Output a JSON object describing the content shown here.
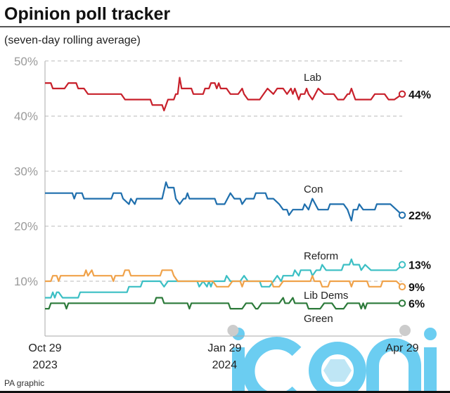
{
  "header": {
    "title": "Opinion poll tracker",
    "subtitle": "(seven-day rolling average)"
  },
  "footer": {
    "credit": "PA graphic"
  },
  "watermark": {
    "text": "iconic",
    "color": "#5cc8f0"
  },
  "chart_data": {
    "type": "line",
    "title": "Opinion poll tracker",
    "subtitle": "(seven-day rolling average)",
    "ylim": [
      0,
      50
    ],
    "yticks": [
      {
        "value": 50,
        "label": "50%"
      },
      {
        "value": 40,
        "label": "40%"
      },
      {
        "value": 30,
        "label": "30%"
      },
      {
        "value": 20,
        "label": "20%"
      },
      {
        "value": 10,
        "label": "10%"
      }
    ],
    "xlim": [
      "2023-10-29",
      "2024-04-29"
    ],
    "xticks": [
      {
        "date": "2023-10-29",
        "line1": "Oct 29",
        "line2": "2023"
      },
      {
        "date": "2024-01-29",
        "line1": "Jan 29",
        "line2": "2024"
      },
      {
        "date": "2024-04-29",
        "line1": "Apr 29",
        "line2": ""
      }
    ],
    "grid": "horizontal dashed",
    "series": [
      {
        "name": "Lab",
        "color": "#c8202b",
        "end_label": "44%",
        "points": [
          [
            "2023-10-29",
            46
          ],
          [
            "2023-11-01",
            46
          ],
          [
            "2023-11-02",
            45
          ],
          [
            "2023-11-08",
            45
          ],
          [
            "2023-11-10",
            46
          ],
          [
            "2023-11-14",
            46
          ],
          [
            "2023-11-15",
            45
          ],
          [
            "2023-11-18",
            45
          ],
          [
            "2023-11-20",
            44
          ],
          [
            "2023-12-07",
            44
          ],
          [
            "2023-12-09",
            43
          ],
          [
            "2023-12-22",
            43
          ],
          [
            "2023-12-23",
            42
          ],
          [
            "2023-12-28",
            42
          ],
          [
            "2023-12-29",
            41
          ],
          [
            "2023-12-31",
            43
          ],
          [
            "2024-01-03",
            43
          ],
          [
            "2024-01-04",
            44
          ],
          [
            "2024-01-05",
            44
          ],
          [
            "2024-01-06",
            47
          ],
          [
            "2024-01-07",
            45
          ],
          [
            "2024-01-12",
            45
          ],
          [
            "2024-01-13",
            44
          ],
          [
            "2024-01-18",
            44
          ],
          [
            "2024-01-19",
            45
          ],
          [
            "2024-01-21",
            45
          ],
          [
            "2024-01-22",
            46
          ],
          [
            "2024-01-24",
            46
          ],
          [
            "2024-01-25",
            45
          ],
          [
            "2024-01-26",
            46
          ],
          [
            "2024-01-27",
            45
          ],
          [
            "2024-01-30",
            45
          ],
          [
            "2024-02-01",
            44
          ],
          [
            "2024-02-05",
            44
          ],
          [
            "2024-02-07",
            45
          ],
          [
            "2024-02-08",
            44
          ],
          [
            "2024-02-10",
            43
          ],
          [
            "2024-02-16",
            43
          ],
          [
            "2024-02-18",
            44
          ],
          [
            "2024-02-20",
            45
          ],
          [
            "2024-02-23",
            44
          ],
          [
            "2024-02-25",
            45
          ],
          [
            "2024-02-28",
            45
          ],
          [
            "2024-03-01",
            44
          ],
          [
            "2024-03-03",
            45
          ],
          [
            "2024-03-04",
            44
          ],
          [
            "2024-03-05",
            45
          ],
          [
            "2024-03-07",
            43
          ],
          [
            "2024-03-08",
            44
          ],
          [
            "2024-03-10",
            44
          ],
          [
            "2024-03-11",
            45
          ],
          [
            "2024-03-12",
            44
          ],
          [
            "2024-03-14",
            43
          ],
          [
            "2024-03-17",
            45
          ],
          [
            "2024-03-20",
            44
          ],
          [
            "2024-03-25",
            44
          ],
          [
            "2024-03-27",
            43
          ],
          [
            "2024-03-30",
            43
          ],
          [
            "2024-04-01",
            44
          ],
          [
            "2024-04-02",
            44
          ],
          [
            "2024-04-03",
            45
          ],
          [
            "2024-04-05",
            43
          ],
          [
            "2024-04-13",
            43
          ],
          [
            "2024-04-15",
            44
          ],
          [
            "2024-04-20",
            44
          ],
          [
            "2024-04-22",
            43
          ],
          [
            "2024-04-25",
            43
          ],
          [
            "2024-04-29",
            44
          ]
        ]
      },
      {
        "name": "Con",
        "color": "#1f6fad",
        "end_label": "22%",
        "points": [
          [
            "2023-10-29",
            26
          ],
          [
            "2023-11-12",
            26
          ],
          [
            "2023-11-13",
            25
          ],
          [
            "2023-11-14",
            26
          ],
          [
            "2023-11-17",
            26
          ],
          [
            "2023-11-18",
            25
          ],
          [
            "2023-12-02",
            25
          ],
          [
            "2023-12-03",
            26
          ],
          [
            "2023-12-07",
            26
          ],
          [
            "2023-12-08",
            25
          ],
          [
            "2023-12-11",
            24
          ],
          [
            "2023-12-12",
            25
          ],
          [
            "2023-12-14",
            24
          ],
          [
            "2023-12-15",
            25
          ],
          [
            "2023-12-28",
            25
          ],
          [
            "2023-12-30",
            28
          ],
          [
            "2023-12-31",
            27
          ],
          [
            "2024-01-03",
            27
          ],
          [
            "2024-01-04",
            25
          ],
          [
            "2024-01-06",
            24
          ],
          [
            "2024-01-08",
            25
          ],
          [
            "2024-01-09",
            25
          ],
          [
            "2024-01-10",
            26
          ],
          [
            "2024-01-11",
            25
          ],
          [
            "2024-01-24",
            25
          ],
          [
            "2024-01-25",
            24
          ],
          [
            "2024-01-29",
            24
          ],
          [
            "2024-02-01",
            26
          ],
          [
            "2024-02-03",
            25
          ],
          [
            "2024-02-06",
            25
          ],
          [
            "2024-02-07",
            24
          ],
          [
            "2024-02-09",
            25
          ],
          [
            "2024-02-13",
            25
          ],
          [
            "2024-02-14",
            26
          ],
          [
            "2024-02-19",
            26
          ],
          [
            "2024-02-20",
            25
          ],
          [
            "2024-02-23",
            25
          ],
          [
            "2024-02-26",
            24
          ],
          [
            "2024-02-28",
            23
          ],
          [
            "2024-03-01",
            23
          ],
          [
            "2024-03-02",
            22
          ],
          [
            "2024-03-04",
            23
          ],
          [
            "2024-03-09",
            23
          ],
          [
            "2024-03-10",
            24
          ],
          [
            "2024-03-12",
            23
          ],
          [
            "2024-03-14",
            25
          ],
          [
            "2024-03-17",
            23
          ],
          [
            "2024-03-22",
            23
          ],
          [
            "2024-03-23",
            24
          ],
          [
            "2024-03-30",
            24
          ],
          [
            "2024-04-01",
            23
          ],
          [
            "2024-04-03",
            21
          ],
          [
            "2024-04-04",
            23
          ],
          [
            "2024-04-06",
            23
          ],
          [
            "2024-04-07",
            24
          ],
          [
            "2024-04-09",
            23
          ],
          [
            "2024-04-15",
            23
          ],
          [
            "2024-04-16",
            24
          ],
          [
            "2024-04-23",
            24
          ],
          [
            "2024-04-26",
            23
          ],
          [
            "2024-04-29",
            22
          ]
        ]
      },
      {
        "name": "Reform",
        "color": "#3bbfc4",
        "end_label": "13%",
        "points": [
          [
            "2023-10-29",
            7
          ],
          [
            "2023-11-01",
            7
          ],
          [
            "2023-11-02",
            8
          ],
          [
            "2023-11-03",
            7
          ],
          [
            "2023-11-04",
            8
          ],
          [
            "2023-11-05",
            8
          ],
          [
            "2023-11-07",
            7
          ],
          [
            "2023-11-15",
            7
          ],
          [
            "2023-11-16",
            8
          ],
          [
            "2023-12-10",
            8
          ],
          [
            "2023-12-11",
            9
          ],
          [
            "2023-12-17",
            9
          ],
          [
            "2023-12-18",
            10
          ],
          [
            "2023-12-27",
            10
          ],
          [
            "2023-12-29",
            9
          ],
          [
            "2023-12-31",
            10
          ],
          [
            "2024-01-15",
            10
          ],
          [
            "2024-01-16",
            9
          ],
          [
            "2024-01-18",
            10
          ],
          [
            "2024-01-20",
            9
          ],
          [
            "2024-01-21",
            10
          ],
          [
            "2024-01-22",
            9
          ],
          [
            "2024-01-23",
            10
          ],
          [
            "2024-01-29",
            10
          ],
          [
            "2024-01-30",
            11
          ],
          [
            "2024-02-01",
            10
          ],
          [
            "2024-02-06",
            10
          ],
          [
            "2024-02-08",
            11
          ],
          [
            "2024-02-10",
            10
          ],
          [
            "2024-02-16",
            10
          ],
          [
            "2024-02-17",
            9
          ],
          [
            "2024-02-21",
            9
          ],
          [
            "2024-02-23",
            10
          ],
          [
            "2024-02-25",
            11
          ],
          [
            "2024-02-27",
            10
          ],
          [
            "2024-02-28",
            11
          ],
          [
            "2024-03-04",
            11
          ],
          [
            "2024-03-05",
            12
          ],
          [
            "2024-03-07",
            11
          ],
          [
            "2024-03-08",
            12
          ],
          [
            "2024-03-13",
            12
          ],
          [
            "2024-03-14",
            11
          ],
          [
            "2024-03-16",
            12
          ],
          [
            "2024-03-18",
            12
          ],
          [
            "2024-03-19",
            13
          ],
          [
            "2024-03-21",
            12
          ],
          [
            "2024-03-29",
            12
          ],
          [
            "2024-03-30",
            13
          ],
          [
            "2024-04-02",
            13
          ],
          [
            "2024-04-03",
            14
          ],
          [
            "2024-04-04",
            13
          ],
          [
            "2024-04-07",
            13
          ],
          [
            "2024-04-08",
            12
          ],
          [
            "2024-04-10",
            13
          ],
          [
            "2024-04-13",
            12
          ],
          [
            "2024-04-26",
            12
          ],
          [
            "2024-04-29",
            13
          ]
        ]
      },
      {
        "name": "Lib Dems",
        "color": "#f0a24a",
        "end_label": "9%",
        "points": [
          [
            "2023-10-29",
            10
          ],
          [
            "2023-11-01",
            10
          ],
          [
            "2023-11-02",
            11
          ],
          [
            "2023-11-04",
            11
          ],
          [
            "2023-11-05",
            10
          ],
          [
            "2023-11-06",
            11
          ],
          [
            "2023-11-18",
            11
          ],
          [
            "2023-11-19",
            12
          ],
          [
            "2023-11-20",
            11
          ],
          [
            "2023-11-22",
            12
          ],
          [
            "2023-11-23",
            11
          ],
          [
            "2023-12-02",
            11
          ],
          [
            "2023-12-03",
            10
          ],
          [
            "2023-12-04",
            11
          ],
          [
            "2023-12-08",
            11
          ],
          [
            "2023-12-09",
            12
          ],
          [
            "2023-12-11",
            12
          ],
          [
            "2023-12-12",
            11
          ],
          [
            "2023-12-27",
            11
          ],
          [
            "2023-12-28",
            12
          ],
          [
            "2024-01-02",
            12
          ],
          [
            "2024-01-03",
            11
          ],
          [
            "2024-01-05",
            10
          ],
          [
            "2024-01-23",
            10
          ],
          [
            "2024-01-25",
            9
          ],
          [
            "2024-01-31",
            9
          ],
          [
            "2024-02-02",
            10
          ],
          [
            "2024-02-06",
            10
          ],
          [
            "2024-02-07",
            9
          ],
          [
            "2024-02-08",
            10
          ],
          [
            "2024-02-22",
            10
          ],
          [
            "2024-02-23",
            9
          ],
          [
            "2024-02-26",
            9
          ],
          [
            "2024-02-28",
            10
          ],
          [
            "2024-03-13",
            10
          ],
          [
            "2024-03-14",
            11
          ],
          [
            "2024-03-15",
            10
          ],
          [
            "2024-03-18",
            10
          ],
          [
            "2024-03-19",
            9
          ],
          [
            "2024-03-22",
            9
          ],
          [
            "2024-03-23",
            10
          ],
          [
            "2024-04-02",
            10
          ],
          [
            "2024-04-03",
            9
          ],
          [
            "2024-04-04",
            10
          ],
          [
            "2024-04-11",
            10
          ],
          [
            "2024-04-12",
            9
          ],
          [
            "2024-04-18",
            9
          ],
          [
            "2024-04-19",
            10
          ],
          [
            "2024-04-26",
            10
          ],
          [
            "2024-04-29",
            9
          ]
        ]
      },
      {
        "name": "Green",
        "color": "#2c7a3a",
        "end_label": "6%",
        "points": [
          [
            "2023-10-29",
            5
          ],
          [
            "2023-10-31",
            5
          ],
          [
            "2023-11-01",
            6
          ],
          [
            "2023-11-08",
            6
          ],
          [
            "2023-11-09",
            5
          ],
          [
            "2023-11-10",
            6
          ],
          [
            "2023-12-24",
            6
          ],
          [
            "2023-12-25",
            7
          ],
          [
            "2023-12-28",
            7
          ],
          [
            "2023-12-29",
            6
          ],
          [
            "2024-01-10",
            6
          ],
          [
            "2024-01-11",
            5
          ],
          [
            "2024-01-12",
            6
          ],
          [
            "2024-01-31",
            6
          ],
          [
            "2024-02-01",
            5
          ],
          [
            "2024-02-07",
            5
          ],
          [
            "2024-02-09",
            6
          ],
          [
            "2024-02-12",
            6
          ],
          [
            "2024-02-14",
            5
          ],
          [
            "2024-02-15",
            5
          ],
          [
            "2024-02-17",
            6
          ],
          [
            "2024-02-26",
            6
          ],
          [
            "2024-02-28",
            7
          ],
          [
            "2024-02-29",
            6
          ],
          [
            "2024-03-02",
            6
          ],
          [
            "2024-03-04",
            7
          ],
          [
            "2024-03-05",
            6
          ],
          [
            "2024-03-11",
            6
          ],
          [
            "2024-03-12",
            5
          ],
          [
            "2024-03-18",
            5
          ],
          [
            "2024-03-20",
            6
          ],
          [
            "2024-03-24",
            6
          ],
          [
            "2024-03-26",
            5
          ],
          [
            "2024-03-30",
            5
          ],
          [
            "2024-04-01",
            6
          ],
          [
            "2024-04-07",
            6
          ],
          [
            "2024-04-08",
            5
          ],
          [
            "2024-04-09",
            6
          ],
          [
            "2024-04-10",
            5
          ],
          [
            "2024-04-11",
            6
          ],
          [
            "2024-04-29",
            6
          ]
        ]
      }
    ]
  }
}
